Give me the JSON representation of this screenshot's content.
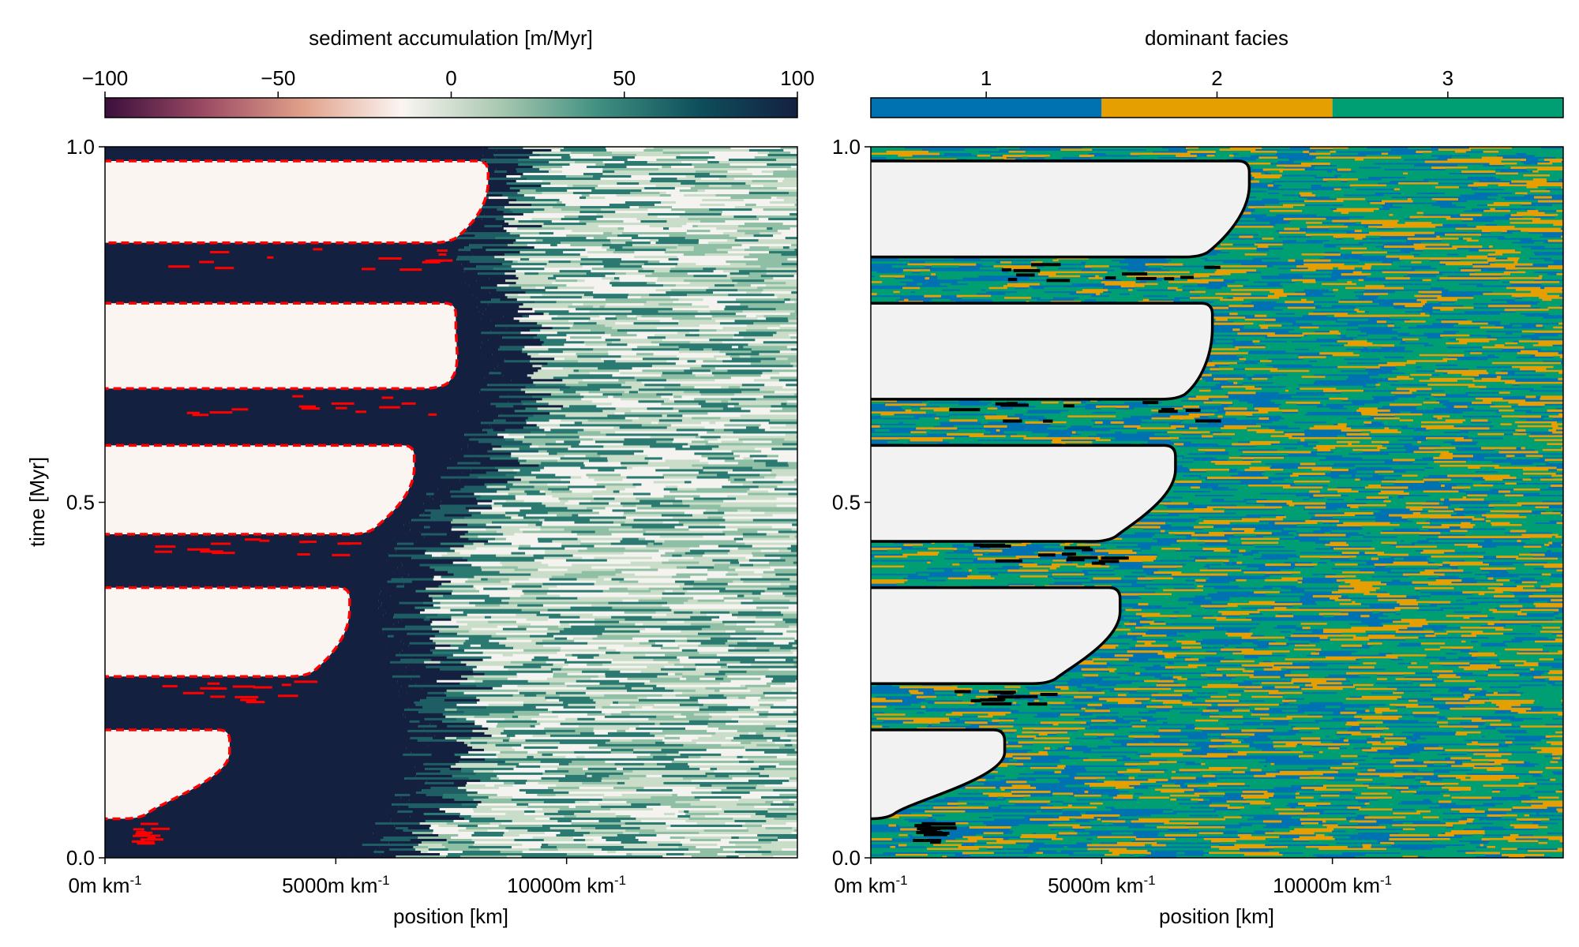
{
  "chart_data": [
    {
      "type": "heatmap",
      "title": "",
      "xlabel": "position [km]",
      "ylabel": "time [Myr]",
      "x_ticks": [
        {
          "value": 0,
          "label": "0m km",
          "sup": "-1"
        },
        {
          "value": 5000,
          "label": "5000m km",
          "sup": "-1"
        },
        {
          "value": 10000,
          "label": "10000m km",
          "sup": "-1"
        }
      ],
      "xlim": [
        0,
        15000
      ],
      "y_ticks": [
        "0.0",
        "0.5",
        "1.0"
      ],
      "ylim": [
        0,
        1
      ],
      "colorbar": {
        "label": "sediment accumulation [m/Myr]",
        "ticks": [
          "−100",
          "−50",
          "0",
          "50",
          "100"
        ],
        "range": [
          -100,
          100
        ],
        "colormap": [
          "#3b0f3c",
          "#9b4a63",
          "#e0a08a",
          "#fbf5f2",
          "#a8c8b0",
          "#3f8f80",
          "#0e4f5c",
          "#14203f"
        ]
      },
      "overlay": {
        "description_color": "#ff0000",
        "style": "dashed"
      },
      "hiatus_bands": [
        {
          "t_top": 0.98,
          "t_bottom": 0.865,
          "x_top": 8300,
          "x_bottom": 7600
        },
        {
          "t_top": 0.78,
          "t_bottom": 0.66,
          "x_top": 7600,
          "x_bottom": 7400
        },
        {
          "t_top": 0.58,
          "t_bottom": 0.455,
          "x_top": 6700,
          "x_bottom": 5800
        },
        {
          "t_top": 0.38,
          "t_bottom": 0.255,
          "x_top": 5300,
          "x_bottom": 4500
        },
        {
          "t_top": 0.18,
          "t_bottom": 0.055,
          "x_top": 2700,
          "x_bottom": 900
        }
      ]
    },
    {
      "type": "heatmap",
      "title": "",
      "xlabel": "position [km]",
      "ylabel": "",
      "x_ticks": [
        {
          "value": 0,
          "label": "0m km",
          "sup": "-1"
        },
        {
          "value": 5000,
          "label": "5000m km",
          "sup": "-1"
        },
        {
          "value": 10000,
          "label": "10000m km",
          "sup": "-1"
        }
      ],
      "xlim": [
        0,
        15000
      ],
      "y_ticks": [
        "0.0",
        "0.5",
        "1.0"
      ],
      "ylim": [
        0,
        1
      ],
      "colorbar": {
        "label": "dominant facies",
        "ticks": [
          "1",
          "2",
          "3"
        ],
        "categories": [
          {
            "value": 1,
            "color": "#0072b2"
          },
          {
            "value": 2,
            "color": "#e69f00"
          },
          {
            "value": 3,
            "color": "#009e73"
          }
        ]
      },
      "hiatus_color": "#f2f2f2",
      "hiatus_bands": [
        {
          "t_top": 0.98,
          "t_bottom": 0.845,
          "x_top": 8200,
          "x_bottom": 7300
        },
        {
          "t_top": 0.78,
          "t_bottom": 0.645,
          "x_top": 7400,
          "x_bottom": 6800
        },
        {
          "t_top": 0.58,
          "t_bottom": 0.445,
          "x_top": 6600,
          "x_bottom": 5300
        },
        {
          "t_top": 0.38,
          "t_bottom": 0.245,
          "x_top": 5400,
          "x_bottom": 4000
        },
        {
          "t_top": 0.18,
          "t_bottom": 0.055,
          "x_top": 2900,
          "x_bottom": 500
        }
      ]
    }
  ]
}
